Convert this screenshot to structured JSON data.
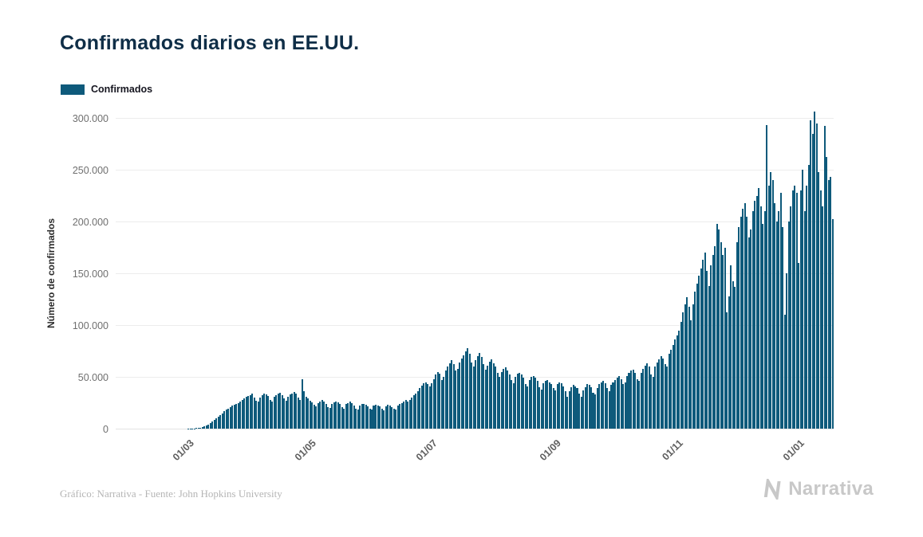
{
  "page": {
    "background": "#ffffff"
  },
  "header": {
    "title": "Confirmados diarios en EE.UU."
  },
  "legend": {
    "label": "Confirmados",
    "swatch_color": "#0e5a7b"
  },
  "footer": {
    "credit": "Gráfico: Narrativa - Fuente: John Hopkins University",
    "brand": "Narrativa"
  },
  "chart_data": {
    "type": "bar",
    "title": "Confirmados diarios en EE.UU.",
    "xlabel": "",
    "ylabel": "Número de confirmados",
    "ylim": [
      0,
      300000
    ],
    "grid": true,
    "legend_position": "top-left",
    "yticks": [
      {
        "value": 0,
        "label": "0"
      },
      {
        "value": 50000,
        "label": "50.000"
      },
      {
        "value": 100000,
        "label": "100.000"
      },
      {
        "value": 150000,
        "label": "150.000"
      },
      {
        "value": 200000,
        "label": "200.000"
      },
      {
        "value": 250000,
        "label": "250.000"
      },
      {
        "value": 300000,
        "label": "300.000"
      }
    ],
    "xticks": [
      {
        "label": "01/03",
        "index": 36
      },
      {
        "label": "01/05",
        "index": 97
      },
      {
        "label": "01/07",
        "index": 158
      },
      {
        "label": "01/09",
        "index": 220
      },
      {
        "label": "01/11",
        "index": 281
      },
      {
        "label": "01/01",
        "index": 342
      }
    ],
    "series": [
      {
        "name": "Confirmados",
        "color": "#0e5a7b",
        "values": [
          0,
          0,
          0,
          1,
          0,
          1,
          2,
          1,
          0,
          1,
          1,
          0,
          2,
          1,
          3,
          2,
          1,
          2,
          3,
          2,
          3,
          4,
          2,
          3,
          5,
          6,
          8,
          10,
          12,
          15,
          18,
          22,
          28,
          35,
          45,
          60,
          100,
          150,
          220,
          330,
          500,
          750,
          1100,
          1600,
          2200,
          3000,
          4000,
          5200,
          6600,
          8200,
          9900,
          11600,
          13300,
          15000,
          16600,
          18100,
          19500,
          20800,
          22000,
          23100,
          24100,
          25000,
          26000,
          27500,
          29000,
          30500,
          31500,
          32000,
          33500,
          30000,
          27000,
          26000,
          30000,
          32500,
          34000,
          33000,
          31500,
          28000,
          26500,
          30500,
          32000,
          33500,
          34500,
          32000,
          29000,
          27000,
          31000,
          33000,
          34000,
          35500,
          33500,
          30000,
          27500,
          48000,
          36000,
          31000,
          29000,
          27000,
          25500,
          23000,
          21500,
          25000,
          26500,
          27500,
          26000,
          24000,
          21000,
          20000,
          24000,
          25500,
          26500,
          25500,
          23500,
          20500,
          19500,
          23500,
          25000,
          26000,
          24500,
          22500,
          19500,
          18500,
          22000,
          23500,
          24000,
          23000,
          21500,
          19000,
          18500,
          22000,
          23000,
          22500,
          21500,
          19000,
          18000,
          21500,
          23000,
          22500,
          21000,
          19500,
          18500,
          22000,
          24000,
          25000,
          26500,
          27500,
          26000,
          28000,
          30000,
          32000,
          34000,
          36500,
          39000,
          41500,
          43500,
          45000,
          43000,
          41000,
          44000,
          48000,
          52000,
          55000,
          53000,
          47000,
          50000,
          56000,
          60000,
          63000,
          66000,
          62000,
          56000,
          58000,
          64000,
          68000,
          71000,
          75000,
          78000,
          72000,
          64000,
          60000,
          66000,
          70000,
          73000,
          69000,
          62000,
          57000,
          61000,
          65000,
          67000,
          63000,
          60000,
          54000,
          50000,
          55000,
          58000,
          59000,
          56000,
          52000,
          47000,
          44000,
          50000,
          53000,
          54000,
          52000,
          49000,
          43000,
          41000,
          47000,
          50000,
          51000,
          49000,
          46000,
          40000,
          38000,
          44000,
          46000,
          47000,
          45000,
          43000,
          39000,
          37000,
          43000,
          45000,
          44000,
          41000,
          36000,
          31000,
          36000,
          40000,
          42000,
          41000,
          39000,
          34000,
          31000,
          37000,
          40000,
          43000,
          42000,
          40000,
          35000,
          33000,
          39000,
          43000,
          45000,
          46000,
          44000,
          39000,
          36000,
          42000,
          45000,
          47000,
          49000,
          51000,
          48000,
          43000,
          45000,
          51000,
          54000,
          56000,
          57000,
          54000,
          48000,
          46000,
          54000,
          58000,
          61000,
          63000,
          60000,
          52000,
          50000,
          60000,
          64000,
          67000,
          70000,
          68000,
          62000,
          60000,
          72000,
          76000,
          81000,
          86000,
          90000,
          95000,
          103000,
          112000,
          120000,
          127000,
          118000,
          105000,
          120000,
          132000,
          140000,
          148000,
          155000,
          163000,
          170000,
          152000,
          138000,
          158000,
          168000,
          176000,
          198000,
          192000,
          180000,
          168000,
          175000,
          112000,
          128000,
          158000,
          142000,
          137000,
          180000,
          195000,
          205000,
          212000,
          218000,
          205000,
          185000,
          192000,
          210000,
          220000,
          225000,
          232000,
          215000,
          198000,
          210000,
          293000,
          235000,
          248000,
          240000,
          218000,
          200000,
          210000,
          228000,
          195000,
          110000,
          150000,
          200000,
          215000,
          230000,
          235000,
          228000,
          160000,
          230000,
          250000,
          210000,
          235000,
          255000,
          298000,
          285000,
          306000,
          295000,
          248000,
          230000,
          215000,
          292000,
          262000,
          240000,
          243000,
          202000
        ]
      }
    ]
  }
}
